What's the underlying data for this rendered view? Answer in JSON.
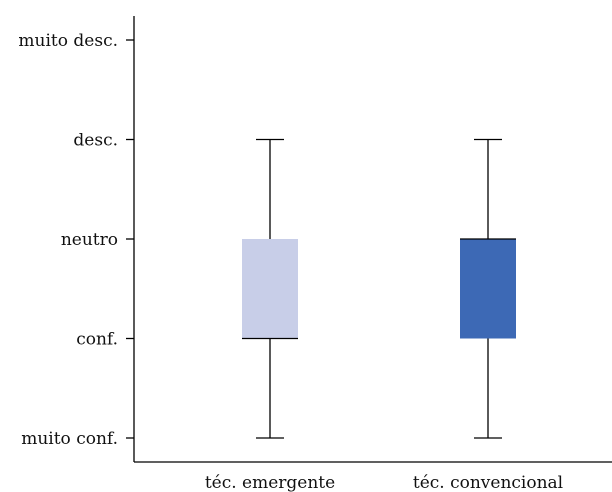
{
  "chart_data": {
    "type": "box",
    "title": "",
    "xlabel": "",
    "ylabel": "",
    "y_levels": [
      1,
      2,
      3,
      4,
      5
    ],
    "y_tick_labels": [
      "muito conf.",
      "conf.",
      "neutro",
      "desc.",
      "muito desc."
    ],
    "ylim": [
      0.8,
      5.2
    ],
    "categories": [
      "téc. emergente",
      "téc. convencional"
    ],
    "boxes": [
      {
        "category": "téc. emergente",
        "min": 1,
        "q1": 2,
        "median": 2,
        "q3": 3,
        "max": 4,
        "color": "#c8cee8"
      },
      {
        "category": "téc. convencional",
        "min": 1,
        "q1": 2,
        "median": 3,
        "q3": 3,
        "max": 4,
        "color": "#3d69b5"
      }
    ],
    "grid": false,
    "legend": "none"
  }
}
